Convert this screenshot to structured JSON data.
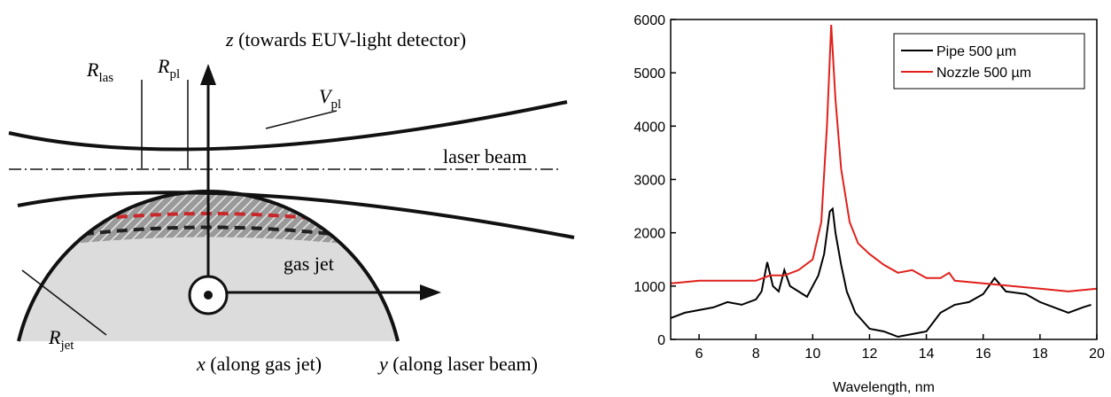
{
  "diagram": {
    "r_las": {
      "symbol": "R",
      "subscript": "las"
    },
    "r_pl": {
      "symbol": "R",
      "subscript": "pl"
    },
    "v_pl": {
      "symbol": "V",
      "subscript": "pl"
    },
    "r_jet": {
      "symbol": "R",
      "subscript": "jet"
    },
    "axis_z": {
      "symbol": "z",
      "text": "(towards EUV-light detector)"
    },
    "axis_x": {
      "symbol": "x",
      "text": "(along gas jet)"
    },
    "axis_y": {
      "symbol": "y",
      "text": "(along laser beam)"
    },
    "laser_beam": "laser beam",
    "gas_jet": "gas jet"
  },
  "chart_data": {
    "type": "line",
    "xlabel": "Wavelength, nm",
    "xlim": [
      5,
      20
    ],
    "xticks": [
      6,
      8,
      10,
      12,
      14,
      16,
      18,
      20
    ],
    "ylim": [
      0,
      6000
    ],
    "yticks": [
      0,
      1000,
      2000,
      3000,
      4000,
      5000,
      6000
    ],
    "legend": "upper right",
    "series": [
      {
        "name": "Pipe 500 µm",
        "color": "#000000",
        "x": [
          5,
          5.5,
          6,
          6.5,
          7,
          7.5,
          8,
          8.2,
          8.4,
          8.6,
          8.8,
          9.0,
          9.2,
          9.5,
          9.8,
          10,
          10.2,
          10.4,
          10.6,
          10.7,
          10.8,
          11,
          11.2,
          11.5,
          12,
          12.5,
          13,
          13.5,
          14,
          14.5,
          15,
          15.5,
          16,
          16.4,
          16.8,
          17.5,
          18,
          18.5,
          19,
          19.5,
          19.8
        ],
        "values": [
          400,
          500,
          550,
          600,
          700,
          650,
          750,
          900,
          1450,
          1000,
          900,
          1300,
          1000,
          900,
          800,
          1000,
          1200,
          1600,
          2400,
          2450,
          2000,
          1400,
          900,
          500,
          200,
          150,
          50,
          100,
          150,
          500,
          650,
          700,
          850,
          1150,
          900,
          850,
          700,
          600,
          500,
          600,
          650
        ]
      },
      {
        "name": "Nozzle 500 µm",
        "color": "#e0201b",
        "x": [
          5,
          6,
          7,
          8,
          8.5,
          9,
          9.5,
          10,
          10.3,
          10.5,
          10.65,
          10.8,
          11,
          11.3,
          11.6,
          12,
          12.5,
          13,
          13.5,
          14,
          14.5,
          14.8,
          15,
          16,
          17,
          18,
          19,
          20
        ],
        "values": [
          1050,
          1100,
          1100,
          1100,
          1200,
          1200,
          1300,
          1500,
          2200,
          4000,
          5900,
          4500,
          3200,
          2200,
          1800,
          1600,
          1400,
          1250,
          1300,
          1150,
          1150,
          1250,
          1100,
          1050,
          1000,
          950,
          900,
          950
        ]
      }
    ]
  }
}
